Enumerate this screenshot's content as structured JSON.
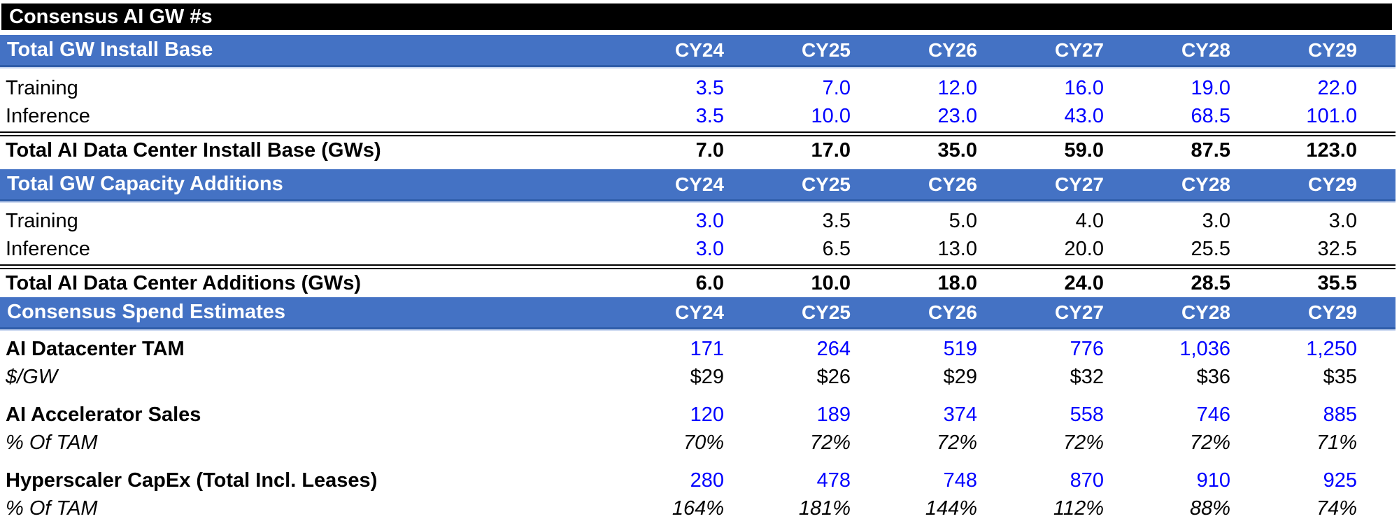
{
  "title": "Consensus AI GW #s",
  "columns": [
    "CY24",
    "CY25",
    "CY26",
    "CY27",
    "CY28",
    "CY29"
  ],
  "colors": {
    "title_bar_bg": "#000000",
    "title_bar_text": "#ffffff",
    "section_header_bg": "#4472c4",
    "section_header_text": "#ffffff",
    "input_number_blue": "#0000ff",
    "computed_number_black": "#000000",
    "background": "#ffffff"
  },
  "sections": [
    {
      "header": "Total GW Install Base",
      "rows": [
        {
          "label": "Training",
          "values": [
            "3.5",
            "7.0",
            "12.0",
            "16.0",
            "19.0",
            "22.0"
          ]
        },
        {
          "label": "Inference",
          "values": [
            "3.5",
            "10.0",
            "23.0",
            "43.0",
            "68.5",
            "101.0"
          ]
        },
        {
          "label": "Total AI Data Center Install Base (GWs)",
          "values": [
            "7.0",
            "17.0",
            "35.0",
            "59.0",
            "87.5",
            "123.0"
          ]
        }
      ]
    },
    {
      "header": "Total GW Capacity Additions",
      "rows": [
        {
          "label": "Training",
          "values": [
            "3.0",
            "3.5",
            "5.0",
            "4.0",
            "3.0",
            "3.0"
          ]
        },
        {
          "label": "Inference",
          "values": [
            "3.0",
            "6.5",
            "13.0",
            "20.0",
            "25.5",
            "32.5"
          ]
        },
        {
          "label": "Total AI Data Center Additions (GWs)",
          "values": [
            "6.0",
            "10.0",
            "18.0",
            "24.0",
            "28.5",
            "35.5"
          ]
        }
      ]
    },
    {
      "header": "Consensus Spend Estimates",
      "rows": [
        {
          "label": "AI Datacenter TAM",
          "values": [
            "171",
            "264",
            "519",
            "776",
            "1,036",
            "1,250"
          ]
        },
        {
          "label": "$/GW",
          "values": [
            "$29",
            "$26",
            "$29",
            "$32",
            "$36",
            "$35"
          ]
        },
        {
          "label": "AI Accelerator Sales",
          "values": [
            "120",
            "189",
            "374",
            "558",
            "746",
            "885"
          ]
        },
        {
          "label": "% Of TAM",
          "values": [
            "70%",
            "72%",
            "72%",
            "72%",
            "72%",
            "71%"
          ]
        },
        {
          "label": "Hyperscaler CapEx (Total Incl. Leases)",
          "values": [
            "280",
            "478",
            "748",
            "870",
            "910",
            "925"
          ]
        },
        {
          "label": "% Of TAM",
          "values": [
            "164%",
            "181%",
            "144%",
            "112%",
            "88%",
            "74%"
          ]
        }
      ]
    }
  ]
}
